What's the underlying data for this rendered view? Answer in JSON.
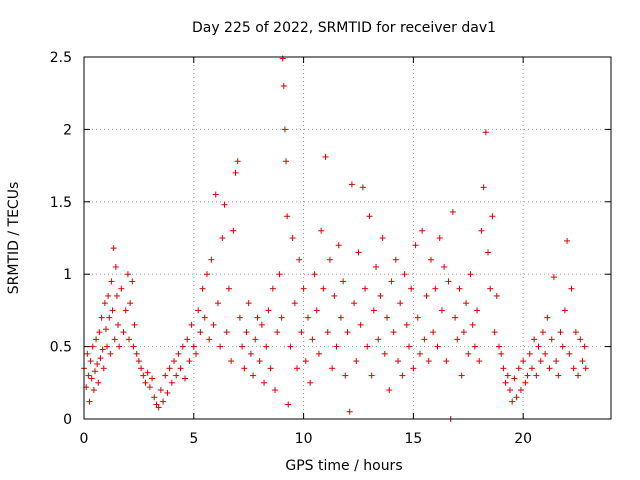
{
  "chart_data": {
    "type": "scatter",
    "title": "Day 225 of 2022, SRMTID for receiver dav1",
    "xlabel": "GPS time / hours",
    "ylabel": "SRMTID / TECUs",
    "xlim": [
      0,
      24
    ],
    "ylim": [
      0,
      2.5
    ],
    "xticks": [
      0,
      5,
      10,
      15,
      20
    ],
    "yticks": [
      0,
      0.5,
      1,
      1.5,
      2,
      2.5
    ],
    "xtick_labels": [
      "0",
      "5",
      "10",
      "15",
      "20"
    ],
    "ytick_labels": [
      "0",
      "0.5",
      "1",
      "1.5",
      "2",
      "2.5"
    ],
    "grid": true,
    "marker": "+",
    "color": "#e00000",
    "series": [
      {
        "name": "SRMTID",
        "points": [
          [
            0.0,
            0.35
          ],
          [
            0.1,
            0.22
          ],
          [
            0.15,
            0.45
          ],
          [
            0.2,
            0.3
          ],
          [
            0.25,
            0.12
          ],
          [
            0.3,
            0.4
          ],
          [
            0.35,
            0.28
          ],
          [
            0.4,
            0.5
          ],
          [
            0.45,
            0.2
          ],
          [
            0.5,
            0.33
          ],
          [
            0.55,
            0.55
          ],
          [
            0.6,
            0.38
          ],
          [
            0.65,
            0.25
          ],
          [
            0.7,
            0.6
          ],
          [
            0.75,
            0.42
          ],
          [
            0.8,
            0.7
          ],
          [
            0.85,
            0.48
          ],
          [
            0.9,
            0.35
          ],
          [
            0.95,
            0.8
          ],
          [
            1.0,
            0.62
          ],
          [
            1.05,
            0.5
          ],
          [
            1.1,
            0.85
          ],
          [
            1.15,
            0.7
          ],
          [
            1.2,
            0.45
          ],
          [
            1.25,
            0.95
          ],
          [
            1.3,
            0.75
          ],
          [
            1.35,
            1.18
          ],
          [
            1.4,
            0.55
          ],
          [
            1.45,
            1.05
          ],
          [
            1.5,
            0.85
          ],
          [
            1.55,
            0.65
          ],
          [
            1.6,
            0.5
          ],
          [
            1.7,
            0.9
          ],
          [
            1.8,
            0.6
          ],
          [
            1.9,
            0.75
          ],
          [
            2.0,
            1.0
          ],
          [
            2.05,
            0.55
          ],
          [
            2.1,
            0.8
          ],
          [
            2.2,
            0.95
          ],
          [
            2.25,
            0.5
          ],
          [
            2.3,
            0.65
          ],
          [
            2.4,
            0.45
          ],
          [
            2.5,
            0.4
          ],
          [
            2.6,
            0.35
          ],
          [
            2.7,
            0.3
          ],
          [
            2.8,
            0.25
          ],
          [
            2.9,
            0.32
          ],
          [
            3.0,
            0.22
          ],
          [
            3.1,
            0.28
          ],
          [
            3.2,
            0.15
          ],
          [
            3.3,
            0.1
          ],
          [
            3.4,
            0.08
          ],
          [
            3.5,
            0.2
          ],
          [
            3.6,
            0.12
          ],
          [
            3.7,
            0.3
          ],
          [
            3.8,
            0.18
          ],
          [
            3.9,
            0.35
          ],
          [
            4.0,
            0.25
          ],
          [
            4.1,
            0.4
          ],
          [
            4.2,
            0.3
          ],
          [
            4.3,
            0.45
          ],
          [
            4.4,
            0.35
          ],
          [
            4.5,
            0.5
          ],
          [
            4.6,
            0.28
          ],
          [
            4.7,
            0.55
          ],
          [
            4.8,
            0.4
          ],
          [
            4.9,
            0.65
          ],
          [
            5.0,
            0.5
          ],
          [
            5.1,
            0.45
          ],
          [
            5.2,
            0.75
          ],
          [
            5.3,
            0.6
          ],
          [
            5.4,
            0.9
          ],
          [
            5.5,
            0.7
          ],
          [
            5.6,
            1.0
          ],
          [
            5.7,
            0.55
          ],
          [
            5.8,
            1.1
          ],
          [
            5.9,
            0.65
          ],
          [
            6.0,
            1.55
          ],
          [
            6.1,
            0.8
          ],
          [
            6.2,
            0.5
          ],
          [
            6.3,
            1.25
          ],
          [
            6.4,
            1.48
          ],
          [
            6.5,
            0.6
          ],
          [
            6.6,
            0.9
          ],
          [
            6.7,
            0.4
          ],
          [
            6.8,
            1.3
          ],
          [
            6.9,
            1.7
          ],
          [
            7.0,
            1.78
          ],
          [
            7.1,
            0.7
          ],
          [
            7.2,
            0.5
          ],
          [
            7.3,
            0.35
          ],
          [
            7.4,
            0.6
          ],
          [
            7.5,
            0.8
          ],
          [
            7.6,
            0.45
          ],
          [
            7.7,
            0.3
          ],
          [
            7.8,
            0.55
          ],
          [
            7.9,
            0.7
          ],
          [
            8.0,
            0.4
          ],
          [
            8.1,
            0.65
          ],
          [
            8.2,
            0.25
          ],
          [
            8.3,
            0.5
          ],
          [
            8.4,
            0.75
          ],
          [
            8.5,
            0.35
          ],
          [
            8.6,
            0.9
          ],
          [
            8.7,
            0.2
          ],
          [
            8.8,
            0.6
          ],
          [
            8.9,
            1.0
          ],
          [
            9.0,
            0.7
          ],
          [
            9.05,
            2.49
          ],
          [
            9.1,
            2.3
          ],
          [
            9.15,
            2.0
          ],
          [
            9.2,
            1.78
          ],
          [
            9.25,
            1.4
          ],
          [
            9.3,
            0.1
          ],
          [
            9.4,
            0.5
          ],
          [
            9.5,
            1.25
          ],
          [
            9.6,
            0.8
          ],
          [
            9.7,
            0.35
          ],
          [
            9.8,
            1.1
          ],
          [
            9.9,
            0.6
          ],
          [
            10.0,
            0.9
          ],
          [
            10.1,
            0.4
          ],
          [
            10.2,
            0.7
          ],
          [
            10.3,
            0.25
          ],
          [
            10.4,
            0.55
          ],
          [
            10.5,
            1.0
          ],
          [
            10.6,
            0.75
          ],
          [
            10.7,
            0.45
          ],
          [
            10.8,
            1.3
          ],
          [
            10.9,
            0.9
          ],
          [
            11.0,
            1.81
          ],
          [
            11.1,
            0.6
          ],
          [
            11.2,
            1.1
          ],
          [
            11.3,
            0.35
          ],
          [
            11.4,
            0.85
          ],
          [
            11.5,
            0.5
          ],
          [
            11.6,
            1.2
          ],
          [
            11.7,
            0.7
          ],
          [
            11.8,
            0.95
          ],
          [
            11.9,
            0.3
          ],
          [
            12.0,
            0.6
          ],
          [
            12.1,
            0.05
          ],
          [
            12.2,
            1.62
          ],
          [
            12.3,
            0.8
          ],
          [
            12.4,
            0.4
          ],
          [
            12.5,
            1.15
          ],
          [
            12.6,
            0.65
          ],
          [
            12.7,
            1.6
          ],
          [
            12.8,
            0.9
          ],
          [
            12.9,
            0.5
          ],
          [
            13.0,
            1.4
          ],
          [
            13.1,
            0.3
          ],
          [
            13.2,
            0.75
          ],
          [
            13.3,
            1.05
          ],
          [
            13.4,
            0.55
          ],
          [
            13.5,
            0.85
          ],
          [
            13.6,
            1.25
          ],
          [
            13.7,
            0.45
          ],
          [
            13.8,
            0.7
          ],
          [
            13.9,
            0.2
          ],
          [
            14.0,
            0.95
          ],
          [
            14.1,
            0.6
          ],
          [
            14.2,
            1.1
          ],
          [
            14.3,
            0.4
          ],
          [
            14.4,
            0.8
          ],
          [
            14.5,
            0.3
          ],
          [
            14.6,
            1.0
          ],
          [
            14.7,
            0.65
          ],
          [
            14.8,
            0.5
          ],
          [
            14.9,
            0.9
          ],
          [
            15.0,
            0.35
          ],
          [
            15.1,
            1.2
          ],
          [
            15.2,
            0.7
          ],
          [
            15.3,
            0.45
          ],
          [
            15.4,
            1.3
          ],
          [
            15.5,
            0.55
          ],
          [
            15.6,
            0.85
          ],
          [
            15.7,
            0.4
          ],
          [
            15.8,
            1.1
          ],
          [
            15.9,
            0.6
          ],
          [
            16.0,
            0.9
          ],
          [
            16.1,
            0.5
          ],
          [
            16.2,
            1.25
          ],
          [
            16.3,
            0.75
          ],
          [
            16.4,
            1.05
          ],
          [
            16.5,
            0.4
          ],
          [
            16.6,
            0.95
          ],
          [
            16.7,
            0.0
          ],
          [
            16.8,
            1.43
          ],
          [
            16.9,
            0.7
          ],
          [
            17.0,
            0.55
          ],
          [
            17.1,
            0.9
          ],
          [
            17.2,
            0.3
          ],
          [
            17.3,
            0.6
          ],
          [
            17.4,
            0.8
          ],
          [
            17.5,
            0.45
          ],
          [
            17.6,
            1.0
          ],
          [
            17.7,
            0.65
          ],
          [
            17.8,
            0.5
          ],
          [
            17.9,
            0.75
          ],
          [
            18.0,
            0.4
          ],
          [
            18.1,
            1.3
          ],
          [
            18.2,
            1.6
          ],
          [
            18.3,
            1.98
          ],
          [
            18.4,
            1.15
          ],
          [
            18.5,
            0.9
          ],
          [
            18.6,
            1.4
          ],
          [
            18.7,
            0.6
          ],
          [
            18.8,
            0.85
          ],
          [
            18.9,
            0.5
          ],
          [
            19.0,
            0.45
          ],
          [
            19.1,
            0.35
          ],
          [
            19.2,
            0.25
          ],
          [
            19.3,
            0.3
          ],
          [
            19.4,
            0.2
          ],
          [
            19.5,
            0.12
          ],
          [
            19.6,
            0.28
          ],
          [
            19.7,
            0.15
          ],
          [
            19.8,
            0.35
          ],
          [
            19.9,
            0.2
          ],
          [
            20.0,
            0.4
          ],
          [
            20.1,
            0.25
          ],
          [
            20.2,
            0.3
          ],
          [
            20.3,
            0.45
          ],
          [
            20.4,
            0.35
          ],
          [
            20.5,
            0.55
          ],
          [
            20.6,
            0.3
          ],
          [
            20.7,
            0.5
          ],
          [
            20.8,
            0.4
          ],
          [
            20.9,
            0.6
          ],
          [
            21.0,
            0.45
          ],
          [
            21.1,
            0.7
          ],
          [
            21.2,
            0.35
          ],
          [
            21.3,
            0.55
          ],
          [
            21.4,
            0.98
          ],
          [
            21.5,
            0.4
          ],
          [
            21.6,
            0.3
          ],
          [
            21.7,
            0.6
          ],
          [
            21.8,
            0.5
          ],
          [
            21.9,
            0.75
          ],
          [
            22.0,
            1.23
          ],
          [
            22.1,
            0.45
          ],
          [
            22.2,
            0.9
          ],
          [
            22.3,
            0.35
          ],
          [
            22.4,
            0.6
          ],
          [
            22.5,
            0.3
          ],
          [
            22.6,
            0.55
          ],
          [
            22.7,
            0.4
          ],
          [
            22.8,
            0.5
          ],
          [
            22.85,
            0.35
          ]
        ]
      }
    ]
  }
}
